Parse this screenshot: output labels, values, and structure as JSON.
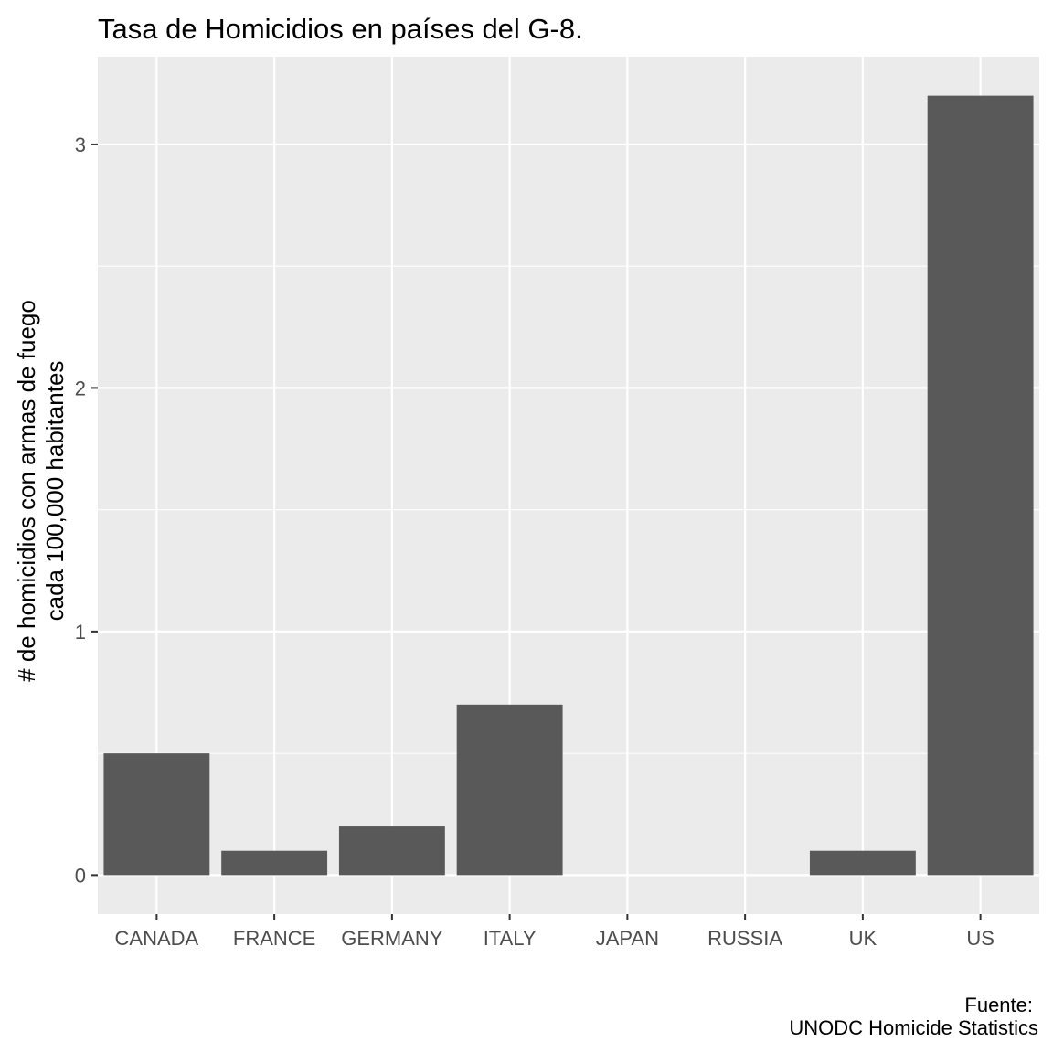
{
  "chart_data": {
    "type": "bar",
    "title": "Tasa de Homicidios en países del G-8.",
    "xlabel": "",
    "ylabel_lines": [
      "# de homicidios con armas de fuego",
      "cada 100,000 habitantes"
    ],
    "categories": [
      "CANADA",
      "FRANCE",
      "GERMANY",
      "ITALY",
      "JAPAN",
      "RUSSIA",
      "UK",
      "US"
    ],
    "values": [
      0.5,
      0.1,
      0.2,
      0.7,
      0.0,
      0.0,
      0.1,
      3.2
    ],
    "ylim": [
      -0.16,
      3.36
    ],
    "yticks": [
      0,
      1,
      2,
      3
    ],
    "grid": true,
    "bar_color": "#595959",
    "panel_color": "#ebebeb",
    "grid_color": "#ffffff",
    "caption_lines": [
      "Fuente:",
      "UNODC Homicide Statistics"
    ]
  }
}
